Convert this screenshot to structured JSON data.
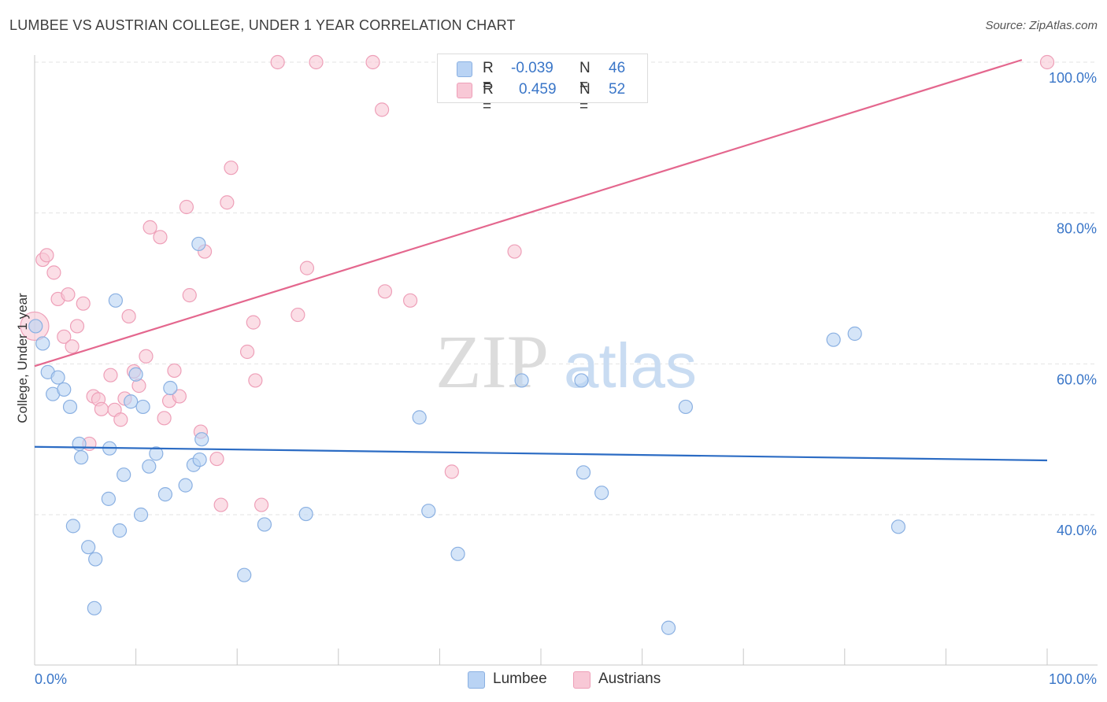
{
  "title": "LUMBEE VS AUSTRIAN COLLEGE, UNDER 1 YEAR CORRELATION CHART",
  "source": "Source: ZipAtlas.com",
  "watermark": {
    "zip": "ZIP",
    "atlas": "atlas"
  },
  "legend": {
    "rows": [
      {
        "r_label": "R =",
        "r_value": "-0.039",
        "n_label": "N =",
        "n_value": "46"
      },
      {
        "r_label": "R =",
        "r_value": "0.459",
        "n_label": "N =",
        "n_value": "52"
      }
    ]
  },
  "bottom_legend": [
    "Lumbee",
    "Austrians"
  ],
  "colors": {
    "lumbee_fill": "#b9d3f4",
    "lumbee_stroke": "#8ab0e2",
    "lumbee_line": "#2c6cc4",
    "austrians_fill": "#f8c8d6",
    "austrians_stroke": "#ee9fb8",
    "austrians_line": "#e4678e",
    "tick_text": "#3a76c8",
    "grid": "#e3e3e3"
  },
  "chart_data": {
    "type": "scatter",
    "title": "LUMBEE VS AUSTRIAN COLLEGE, UNDER 1 YEAR CORRELATION CHART",
    "xlabel": "",
    "ylabel": "College, Under 1 year",
    "xlim": [
      0,
      100
    ],
    "ylim": [
      25,
      101
    ],
    "x_tick_labels": [
      "0.0%",
      "100.0%"
    ],
    "y_ticks": [
      40,
      60,
      80,
      100
    ],
    "y_tick_labels": [
      "40.0%",
      "60.0%",
      "80.0%",
      "100.0%"
    ],
    "grid": "horizontal dashed",
    "series": [
      {
        "name": "Lumbee",
        "trend": {
          "x": [
            0,
            100
          ],
          "y": [
            49.0,
            47.2
          ]
        },
        "points": [
          [
            0.1,
            65.0
          ],
          [
            0.8,
            62.7
          ],
          [
            1.3,
            58.9
          ],
          [
            1.8,
            56.0
          ],
          [
            2.3,
            58.2
          ],
          [
            2.9,
            56.6
          ],
          [
            3.5,
            54.3
          ],
          [
            4.4,
            49.4
          ],
          [
            4.6,
            47.6
          ],
          [
            5.3,
            35.7
          ],
          [
            6.0,
            34.1
          ],
          [
            5.9,
            27.6
          ],
          [
            3.8,
            38.5
          ],
          [
            7.3,
            42.1
          ],
          [
            7.4,
            48.8
          ],
          [
            8.0,
            68.4
          ],
          [
            8.4,
            37.9
          ],
          [
            8.8,
            45.3
          ],
          [
            9.5,
            55.0
          ],
          [
            10.0,
            58.6
          ],
          [
            10.5,
            40.0
          ],
          [
            10.7,
            54.3
          ],
          [
            11.3,
            46.4
          ],
          [
            12.0,
            48.1
          ],
          [
            12.9,
            42.7
          ],
          [
            13.4,
            56.8
          ],
          [
            14.9,
            43.9
          ],
          [
            15.7,
            46.6
          ],
          [
            16.2,
            75.9
          ],
          [
            16.5,
            50.0
          ],
          [
            16.3,
            47.3
          ],
          [
            20.7,
            32.0
          ],
          [
            22.7,
            38.7
          ],
          [
            26.8,
            40.1
          ],
          [
            38.0,
            52.9
          ],
          [
            38.9,
            40.5
          ],
          [
            41.8,
            34.8
          ],
          [
            48.1,
            57.8
          ],
          [
            54.0,
            57.8
          ],
          [
            54.2,
            45.6
          ],
          [
            56.0,
            42.9
          ],
          [
            62.6,
            25.0
          ],
          [
            64.3,
            54.3
          ],
          [
            78.9,
            63.2
          ],
          [
            81.0,
            64.0
          ],
          [
            85.3,
            38.4
          ]
        ]
      },
      {
        "name": "Austrians",
        "trend": {
          "x": [
            0,
            97.5
          ],
          "y": [
            59.7,
            100.3
          ]
        },
        "points": [
          [
            0.0,
            65.0
          ],
          [
            0.8,
            73.8
          ],
          [
            1.2,
            74.4
          ],
          [
            1.9,
            72.1
          ],
          [
            2.3,
            68.6
          ],
          [
            2.9,
            63.6
          ],
          [
            3.3,
            69.2
          ],
          [
            3.7,
            62.3
          ],
          [
            4.2,
            65.0
          ],
          [
            4.8,
            68.0
          ],
          [
            5.4,
            49.4
          ],
          [
            5.8,
            55.7
          ],
          [
            6.3,
            55.3
          ],
          [
            6.6,
            54.0
          ],
          [
            7.5,
            58.5
          ],
          [
            7.9,
            53.9
          ],
          [
            8.5,
            52.6
          ],
          [
            8.9,
            55.4
          ],
          [
            9.3,
            66.3
          ],
          [
            9.8,
            59.0
          ],
          [
            10.3,
            57.1
          ],
          [
            11.0,
            61.0
          ],
          [
            11.4,
            78.1
          ],
          [
            12.4,
            76.8
          ],
          [
            12.8,
            52.8
          ],
          [
            13.3,
            55.1
          ],
          [
            13.8,
            59.1
          ],
          [
            14.3,
            55.7
          ],
          [
            15.0,
            80.8
          ],
          [
            15.3,
            69.1
          ],
          [
            16.4,
            51.0
          ],
          [
            16.8,
            74.9
          ],
          [
            18.0,
            47.4
          ],
          [
            18.4,
            41.3
          ],
          [
            19.0,
            81.4
          ],
          [
            19.4,
            86.0
          ],
          [
            21.0,
            61.6
          ],
          [
            21.6,
            65.5
          ],
          [
            21.8,
            57.8
          ],
          [
            22.4,
            41.3
          ],
          [
            24.0,
            100.0
          ],
          [
            26.0,
            66.5
          ],
          [
            26.9,
            72.7
          ],
          [
            27.8,
            100.0
          ],
          [
            33.4,
            100.0
          ],
          [
            34.3,
            93.7
          ],
          [
            34.6,
            69.6
          ],
          [
            37.1,
            68.4
          ],
          [
            41.2,
            45.7
          ],
          [
            47.4,
            74.9
          ],
          [
            52.6,
            96.2
          ],
          [
            100.0,
            100.0
          ]
        ]
      }
    ]
  }
}
